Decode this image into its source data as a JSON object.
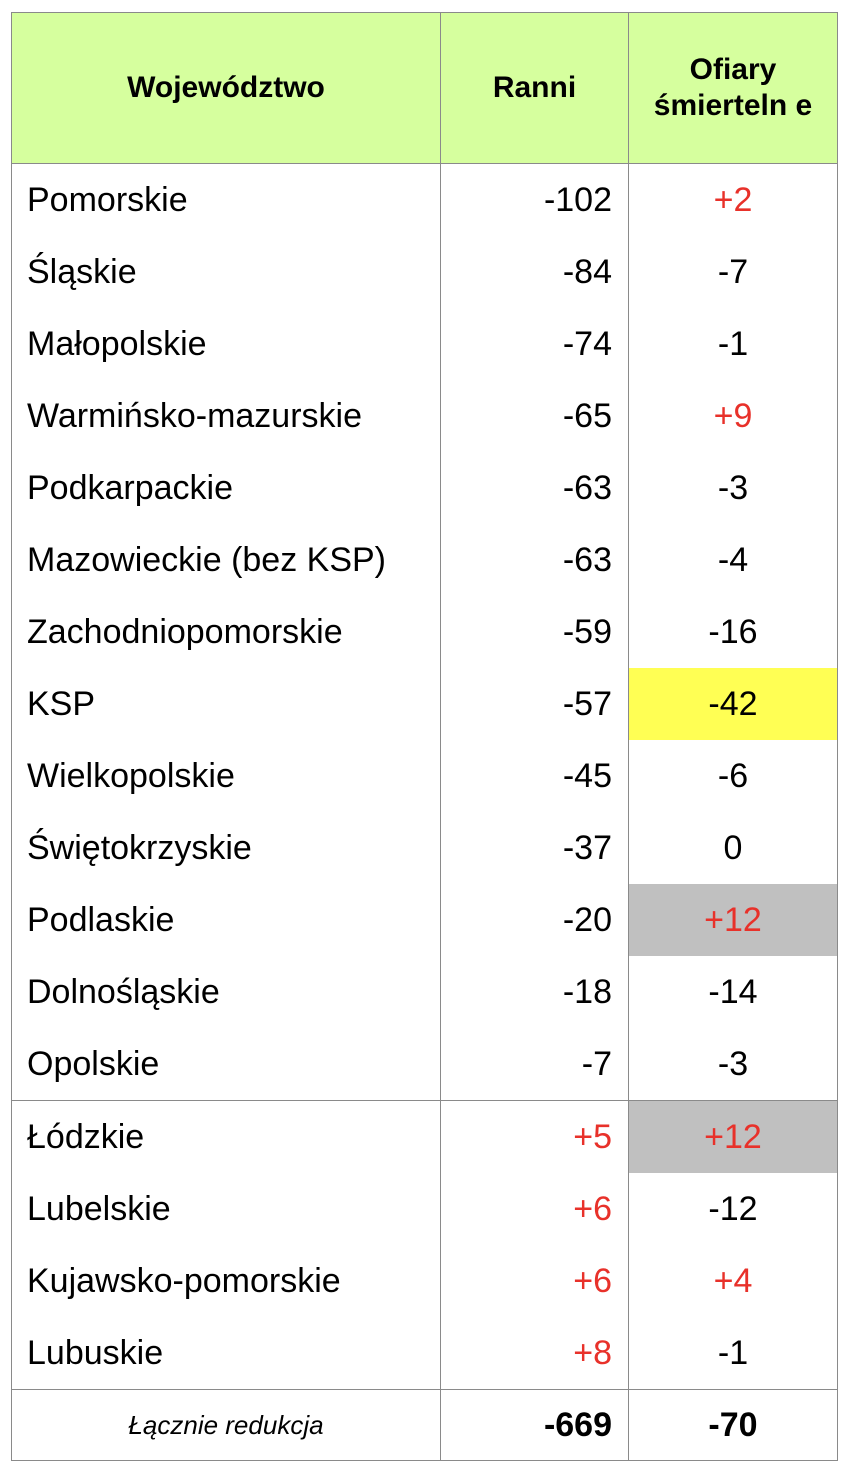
{
  "header": {
    "col1": "Województwo",
    "col2": "Ranni",
    "col3": "Ofiary śmierteln e"
  },
  "rows": [
    {
      "name": "Pomorskie",
      "ranni": "-102",
      "ofiary": "+2"
    },
    {
      "name": "Śląskie",
      "ranni": "-84",
      "ofiary": "-7"
    },
    {
      "name": "Małopolskie",
      "ranni": "-74",
      "ofiary": "-1"
    },
    {
      "name": "Warmińsko-mazurskie",
      "ranni": "-65",
      "ofiary": "+9"
    },
    {
      "name": "Podkarpackie",
      "ranni": "-63",
      "ofiary": "-3"
    },
    {
      "name": "Mazowieckie (bez KSP)",
      "ranni": "-63",
      "ofiary": "-4"
    },
    {
      "name": "Zachodniopomorskie",
      "ranni": "-59",
      "ofiary": "-16"
    },
    {
      "name": "KSP",
      "ranni": "-57",
      "ofiary": "-42"
    },
    {
      "name": "Wielkopolskie",
      "ranni": "-45",
      "ofiary": "-6"
    },
    {
      "name": "Świętokrzyskie",
      "ranni": "-37",
      "ofiary": "0"
    },
    {
      "name": "Podlaskie",
      "ranni": "-20",
      "ofiary": "+12"
    },
    {
      "name": "Dolnośląskie",
      "ranni": "-18",
      "ofiary": "-14"
    },
    {
      "name": "Opolskie",
      "ranni": "-7",
      "ofiary": "-3"
    },
    {
      "name": "Łódzkie",
      "ranni": "+5",
      "ofiary": "+12"
    },
    {
      "name": "Lubelskie",
      "ranni": "+6",
      "ofiary": "-12"
    },
    {
      "name": "Kujawsko-pomorskie",
      "ranni": "+6",
      "ofiary": "+4"
    },
    {
      "name": "Lubuskie",
      "ranni": "+8",
      "ofiary": "-1"
    }
  ],
  "total": {
    "label": "Łącznie redukcja",
    "ranni": "-669",
    "ofiary": "-70"
  },
  "colors": {
    "header_bg": "#d6ff9e",
    "positive_text": "#e8312a",
    "highlight_yellow": "#ffff54",
    "highlight_gray": "#c0c0c0",
    "border": "#8a8a8a"
  }
}
